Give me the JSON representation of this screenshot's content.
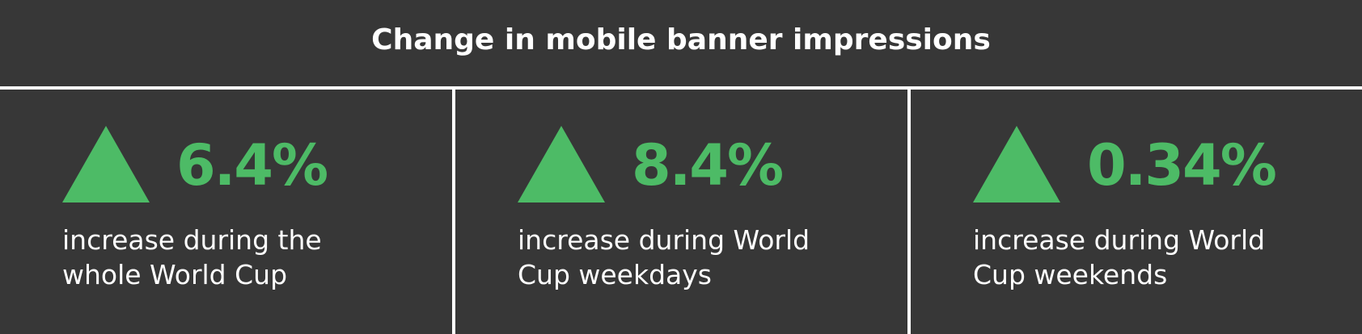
{
  "header": {
    "title": "Change in mobile banner impressions"
  },
  "colors": {
    "background": "#373737",
    "accent": "#4dbb66",
    "text": "#ffffff",
    "divider": "#ffffff"
  },
  "cards": [
    {
      "icon": "up-triangle-icon",
      "value": "6.4%",
      "desc_line1": "increase during the",
      "desc_line2": "whole World Cup"
    },
    {
      "icon": "up-triangle-icon",
      "value": "8.4%",
      "desc_line1": "increase during World",
      "desc_line2": "Cup weekdays"
    },
    {
      "icon": "up-triangle-icon",
      "value": "0.34%",
      "desc_line1": "increase during World",
      "desc_line2": "Cup weekends"
    }
  ]
}
